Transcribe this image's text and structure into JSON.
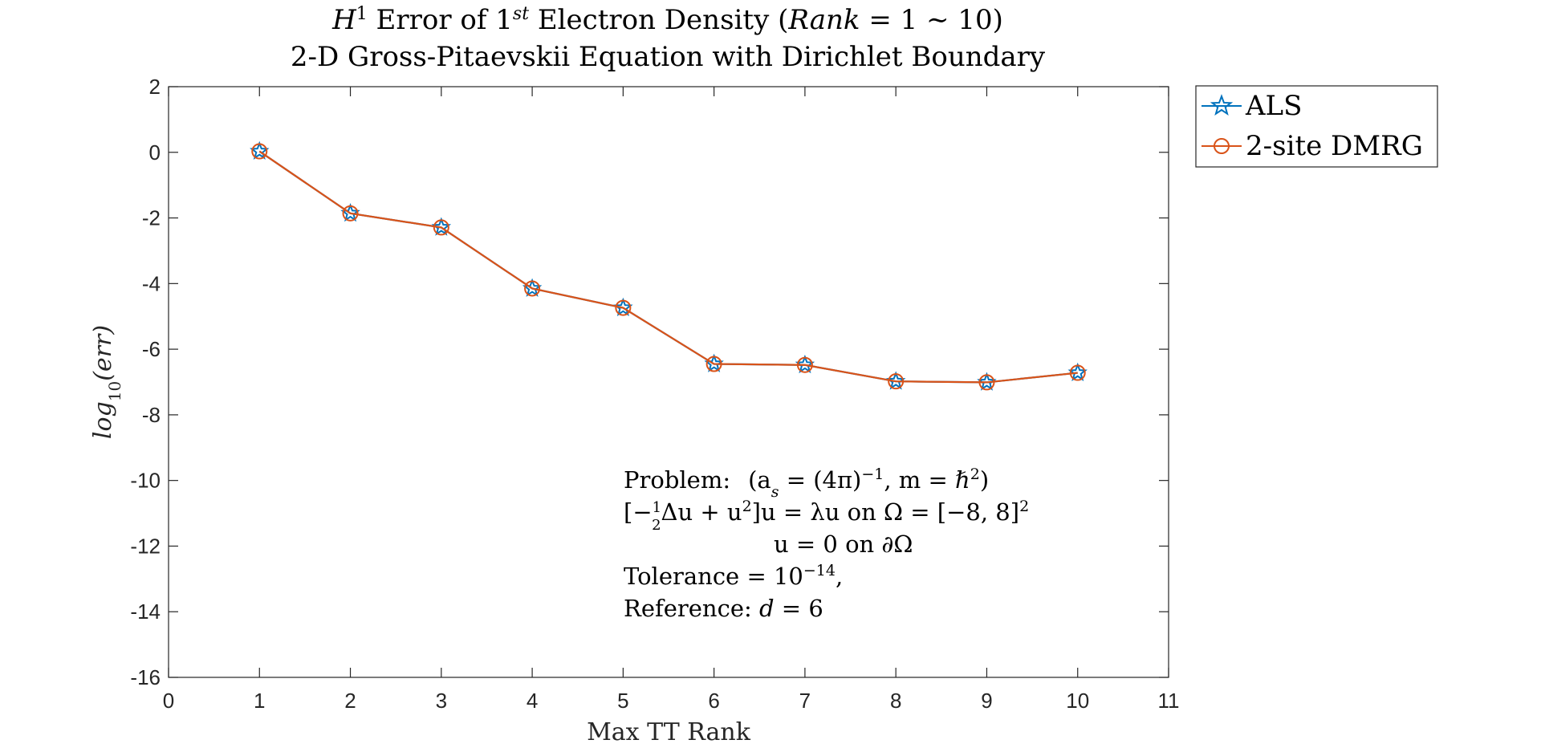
{
  "chart_data": {
    "type": "line",
    "title": {
      "line1": {
        "h": "H",
        "h_sup": "1",
        "mid": " Error of 1",
        "st": "st",
        "tail": " Electron Density (",
        "rank": "Rank",
        "eq": " = 1 ∼ 10)"
      },
      "line2": "2-D Gross-Pitaevskii Equation with Dirichlet Boundary"
    },
    "xlabel": "Max TT Rank",
    "ylabel": {
      "base": "log",
      "sub": "10",
      "arg": "(err)"
    },
    "xlim": [
      0,
      11
    ],
    "ylim": [
      -16,
      2
    ],
    "xticks": [
      0,
      1,
      2,
      3,
      4,
      5,
      6,
      7,
      8,
      9,
      10,
      11
    ],
    "yticks": [
      2,
      0,
      -2,
      -4,
      -6,
      -8,
      -10,
      -12,
      -14,
      -16
    ],
    "xtick_labels": [
      "0",
      "1",
      "2",
      "3",
      "4",
      "5",
      "6",
      "7",
      "8",
      "9",
      "10",
      "11"
    ],
    "ytick_labels": [
      "2",
      "0",
      "-2",
      "-4",
      "-6",
      "-8",
      "-10",
      "-12",
      "-14",
      "-16"
    ],
    "x": [
      1,
      2,
      3,
      4,
      5,
      6,
      7,
      8,
      9,
      10
    ],
    "series": [
      {
        "name": "ALS",
        "color": "#0072BD",
        "marker": "star",
        "values": [
          0.03,
          -1.86,
          -2.29,
          -4.15,
          -4.74,
          -6.45,
          -6.48,
          -6.98,
          -7.01,
          -6.72
        ]
      },
      {
        "name": "2-site DMRG",
        "color": "#D95319",
        "marker": "circle",
        "values": [
          0.03,
          -1.86,
          -2.29,
          -4.15,
          -4.74,
          -6.45,
          -6.48,
          -6.98,
          -7.01,
          -6.72
        ]
      }
    ],
    "legend_position": "outside-top-right",
    "grid": false,
    "annotation": {
      "line1": {
        "label": "Problem:",
        "expr": "(a",
        "sub": "s",
        "eq": " = (4π)",
        "sup": "−1",
        "tail": ",   m = ℏ",
        "sup2": "2",
        "close": ")"
      },
      "line2": {
        "open": "[−",
        "num": "1",
        "den": "2",
        "mid": "Δu + u",
        "sup": "2",
        "tail": "]u = λu   on   Ω = [−8, 8]",
        "sup2": "2"
      },
      "line3": "u = 0      on   ∂Ω",
      "line4": {
        "pre": "Tolerance = 10",
        "sup": "−14",
        "post": ","
      },
      "line5": {
        "pre": "Reference: ",
        "var": "d",
        "post": " = 6"
      }
    }
  }
}
